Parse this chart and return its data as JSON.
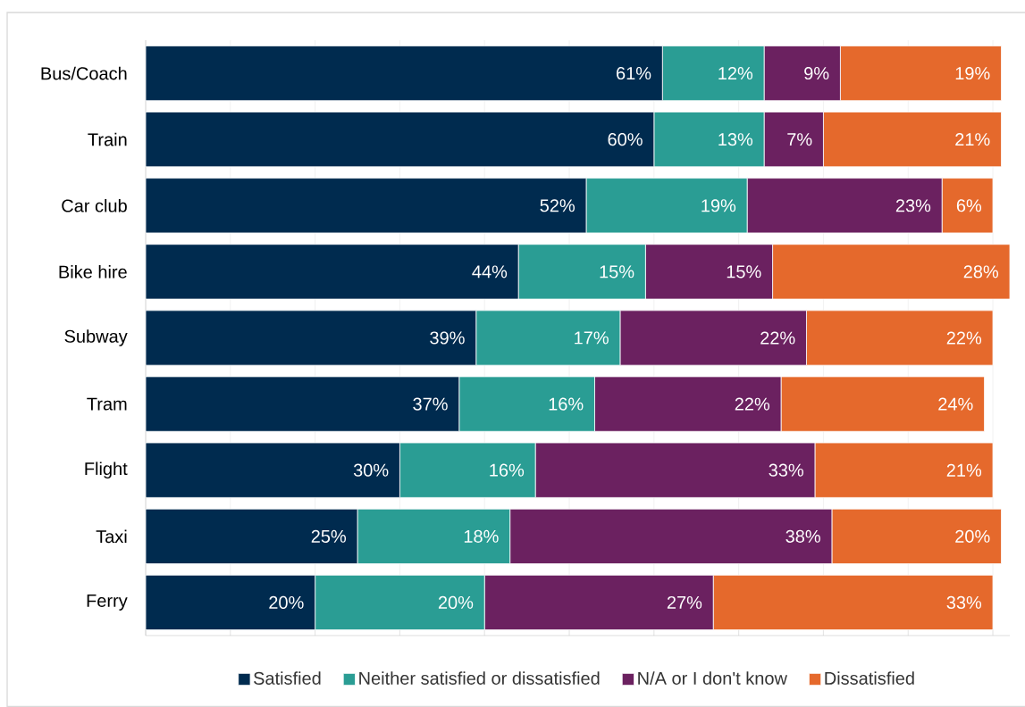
{
  "chart_data": {
    "type": "bar",
    "orientation": "horizontal",
    "stacked": true,
    "categories": [
      "Bus/Coach",
      "Train",
      "Car club",
      "Bike hire",
      "Subway",
      "Tram",
      "Flight",
      "Taxi",
      "Ferry"
    ],
    "series": [
      {
        "name": "Satisfied",
        "color": "#002b4f",
        "values": [
          61,
          60,
          52,
          44,
          39,
          37,
          30,
          25,
          20
        ],
        "value_labels": [
          "61%",
          "60%",
          "52%",
          "44%",
          "39%",
          "37%",
          "30%",
          "25%",
          "20%"
        ]
      },
      {
        "name": "Neither satisfied or dissatisfied",
        "color": "#2a9d94",
        "values": [
          12,
          13,
          19,
          15,
          17,
          16,
          16,
          18,
          20
        ],
        "value_labels": [
          "12%",
          "13%",
          "19%",
          "15%",
          "17%",
          "16%",
          "16%",
          "18%",
          "20%"
        ]
      },
      {
        "name": "N/A or I don't know",
        "color": "#6b2160",
        "values": [
          9,
          7,
          23,
          15,
          22,
          22,
          33,
          38,
          27
        ],
        "value_labels": [
          "9%",
          "7%",
          "23%",
          "15%",
          "22%",
          "22%",
          "33%",
          "38%",
          "27%"
        ]
      },
      {
        "name": "Dissatisfied",
        "color": "#e5692c",
        "values": [
          19,
          21,
          6,
          28,
          22,
          24,
          21,
          20,
          33
        ],
        "value_labels": [
          "19%",
          "21%",
          "6%",
          "28%",
          "22%",
          "24%",
          "21%",
          "20%",
          "33%"
        ]
      }
    ],
    "xlim": [
      0,
      102
    ],
    "xticks": [
      {
        "value": 0,
        "label": null
      },
      {
        "value": 10,
        "label": null
      },
      {
        "value": 20,
        "label": null
      },
      {
        "value": 30,
        "label": null
      },
      {
        "value": 40,
        "label": null
      },
      {
        "value": 50,
        "label": null
      },
      {
        "value": 60,
        "label": null
      },
      {
        "value": 70,
        "label": null
      },
      {
        "value": 80,
        "label": null
      },
      {
        "value": 90,
        "label": null
      },
      {
        "value": 100,
        "label": null
      }
    ],
    "grid": "x",
    "legend": "bottom",
    "tick_labels": "y"
  }
}
